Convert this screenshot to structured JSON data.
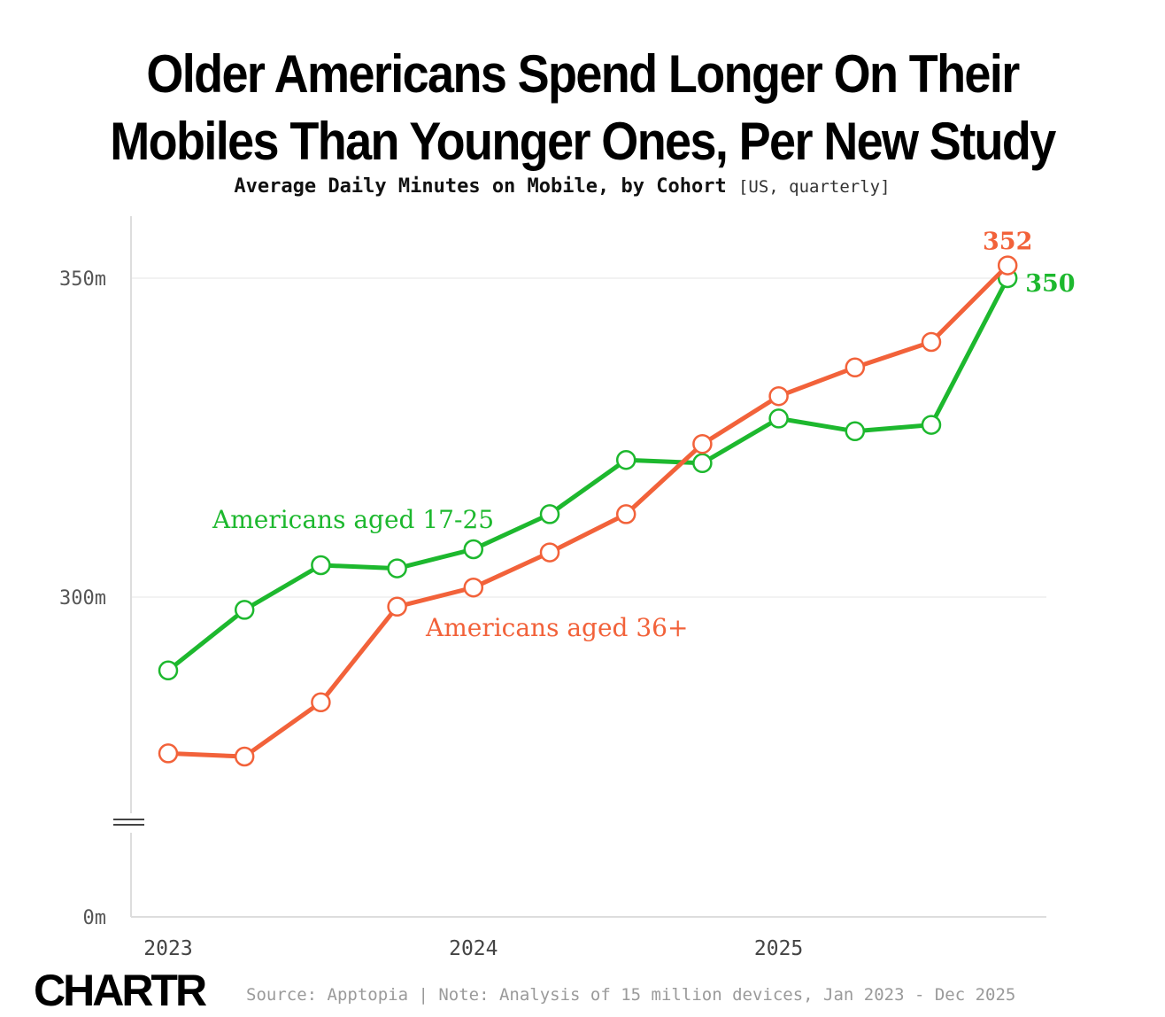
{
  "header": {
    "title_line1": "Older Americans Spend Longer On Their",
    "title_line2": "Mobiles Than Younger Ones, Per New Study",
    "subtitle_main": "Average Daily Minutes on Mobile, by Cohort",
    "subtitle_note": "[US, quarterly]"
  },
  "colors": {
    "young": "#1db82e",
    "old": "#f2623a",
    "axis": "#dddddd",
    "grid": "#eeeeee",
    "tick": "#555555"
  },
  "chart_data": {
    "type": "line",
    "title": "Older Americans Spend Longer On Their Mobiles Than Younger Ones, Per New Study",
    "subtitle": "Average Daily Minutes on Mobile, by Cohort [US, quarterly]",
    "xlabel": "",
    "ylabel": "",
    "x": [
      "Q1 2023",
      "Q2 2023",
      "Q3 2023",
      "Q4 2023",
      "Q1 2024",
      "Q2 2024",
      "Q3 2024",
      "Q4 2024",
      "Q1 2025",
      "Q2 2025",
      "Q3 2025",
      "Q4 2025"
    ],
    "x_tick_labels": [
      {
        "index": 0,
        "label": "2023"
      },
      {
        "index": 4,
        "label": "2024"
      },
      {
        "index": 8,
        "label": "2025"
      }
    ],
    "y_tick_labels": [
      {
        "value": 350,
        "label": "350m"
      },
      {
        "value": 300,
        "label": "300m"
      },
      {
        "value": 0,
        "label": "0m"
      }
    ],
    "axis_break": true,
    "ylim": [
      0,
      360
    ],
    "grid": true,
    "series": [
      {
        "name": "Americans aged 17-25",
        "key": "young",
        "values": [
          288.5,
          298,
          305,
          304.5,
          307.5,
          313,
          321.5,
          321,
          328,
          326,
          327,
          350
        ],
        "end_label": "350"
      },
      {
        "name": "Americans aged 36+",
        "key": "old",
        "values": [
          275.5,
          275,
          283.5,
          298.5,
          301.5,
          307,
          313,
          324,
          331.5,
          336,
          340,
          352
        ],
        "end_label": "352"
      }
    ]
  },
  "footer": {
    "logo": "CHARTR",
    "source": "Source: Apptopia | Note: Analysis of 15 million devices, Jan 2023 - Dec 2025"
  }
}
